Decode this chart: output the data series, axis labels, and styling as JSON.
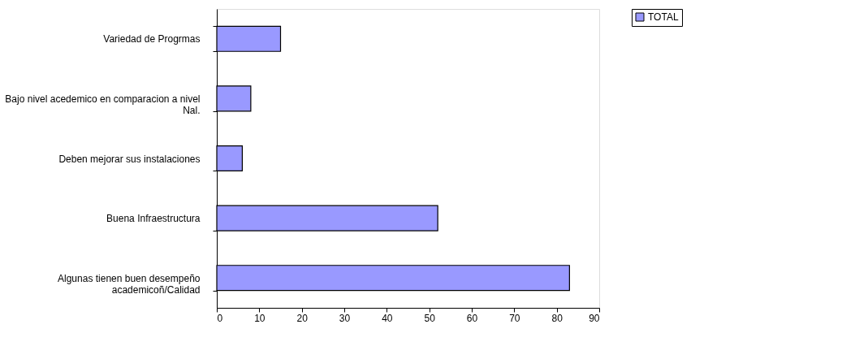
{
  "chart_data": {
    "type": "bar",
    "orientation": "horizontal",
    "categories": [
      "Variedad de Progrmas",
      "Bajo nivel acedemico en comparacion a nivel Nal.",
      "Deben mejorar sus instalaciones",
      "Buena Infraestructura",
      "Algunas tienen buen desempeño academicoñ/Calidad"
    ],
    "series": [
      {
        "name": "TOTAL",
        "color": "#9999ff",
        "values": [
          15,
          8,
          6,
          52,
          83
        ]
      }
    ],
    "xlim": [
      0,
      90
    ],
    "xticks": [
      0,
      10,
      20,
      30,
      40,
      50,
      60,
      70,
      80,
      90
    ],
    "grid": false,
    "legend": "right"
  }
}
